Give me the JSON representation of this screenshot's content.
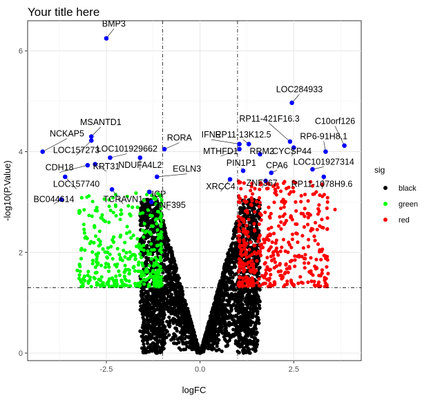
{
  "chart_data": {
    "type": "scatter",
    "title": "Your title here",
    "xlabel": "logFC",
    "ylabel": "-log10(P.Value)",
    "xlim": [
      -4.6,
      4.3
    ],
    "ylim": [
      -0.15,
      6.6
    ],
    "x_ticks": [
      -2.5,
      0.0,
      2.5
    ],
    "x_tick_labels": [
      "-2.5",
      "0.0",
      "2.5"
    ],
    "y_ticks": [
      0,
      2,
      4,
      6
    ],
    "y_tick_labels": [
      "0",
      "2",
      "4",
      "6"
    ],
    "grid": true,
    "vlines": [
      -1,
      1
    ],
    "hline": 1.3,
    "legend": {
      "title": "sig",
      "position": "right",
      "items": [
        {
          "label": "black",
          "color": "#000000"
        },
        {
          "label": "green",
          "color": "#00ff00"
        },
        {
          "label": "red",
          "color": "#ff0000"
        }
      ]
    },
    "colors": {
      "black": "#000000",
      "green": "#00ff00",
      "red": "#ff0000",
      "labeled": "#0000ff"
    },
    "labeled_points": [
      {
        "gene": "BMP3",
        "x": -2.5,
        "y": 6.25,
        "lx": -2.3,
        "ly": 6.48
      },
      {
        "gene": "LOC284933",
        "x": 2.45,
        "y": 4.97,
        "lx": 2.65,
        "ly": 5.18
      },
      {
        "gene": "MSANTD1",
        "x": -2.9,
        "y": 4.3,
        "lx": -2.65,
        "ly": 4.53
      },
      {
        "gene": "NCKAP5",
        "x": -4.2,
        "y": 4.0,
        "lx": -3.55,
        "ly": 4.3
      },
      {
        "gene": "LOC157273",
        "x": -2.9,
        "y": 4.22,
        "lx": -3.3,
        "ly": 3.97
      },
      {
        "gene": "LOC101929662",
        "x": -2.4,
        "y": 3.88,
        "lx": -1.95,
        "ly": 4.0
      },
      {
        "gene": "RORA",
        "x": -0.95,
        "y": 4.05,
        "lx": -0.55,
        "ly": 4.22
      },
      {
        "gene": "NDUFA4L2",
        "x": -1.6,
        "y": 3.88,
        "lx": -1.6,
        "ly": 3.68
      },
      {
        "gene": "CDH18",
        "x": -3.0,
        "y": 3.73,
        "lx": -3.75,
        "ly": 3.63
      },
      {
        "gene": "KRT31",
        "x": -2.8,
        "y": 3.75,
        "lx": -2.5,
        "ly": 3.65
      },
      {
        "gene": "EGLN3",
        "x": -1.15,
        "y": 3.5,
        "lx": -0.35,
        "ly": 3.6
      },
      {
        "gene": "LOC157740",
        "x": -3.6,
        "y": 3.5,
        "lx": -3.3,
        "ly": 3.3
      },
      {
        "gene": "BC044614",
        "x": -3.7,
        "y": 3.05,
        "lx": -3.9,
        "ly": 3.0
      },
      {
        "gene": "TCRAVN1",
        "x": -2.35,
        "y": 3.25,
        "lx": -2.05,
        "ly": 3.0
      },
      {
        "gene": "ICP",
        "x": -1.35,
        "y": 3.2,
        "lx": -1.1,
        "ly": 3.1
      },
      {
        "gene": "ZNF395",
        "x": -1.3,
        "y": 3.0,
        "lx": -0.8,
        "ly": 2.88
      },
      {
        "gene": "IFNE",
        "x": 1.05,
        "y": 4.15,
        "lx": 0.3,
        "ly": 4.28
      },
      {
        "gene": "RP11-13K12.5",
        "x": 1.3,
        "y": 4.15,
        "lx": 1.15,
        "ly": 4.28
      },
      {
        "gene": "RP11-421F16.3",
        "x": 2.4,
        "y": 4.2,
        "lx": 1.85,
        "ly": 4.6
      },
      {
        "gene": "C10orf126",
        "x": 3.85,
        "y": 4.12,
        "lx": 3.6,
        "ly": 4.55
      },
      {
        "gene": "RP6-91H8.1",
        "x": 3.35,
        "y": 4.0,
        "lx": 3.3,
        "ly": 4.25
      },
      {
        "gene": "MTHFD1",
        "x": 1.05,
        "y": 4.05,
        "lx": 0.55,
        "ly": 3.95
      },
      {
        "gene": "RRM2",
        "x": 1.6,
        "y": 3.95,
        "lx": 1.65,
        "ly": 3.95
      },
      {
        "gene": "CYCSP44",
        "x": 2.5,
        "y": 4.08,
        "lx": 2.45,
        "ly": 3.95
      },
      {
        "gene": "LOC101927314",
        "x": 3.0,
        "y": 3.65,
        "lx": 3.3,
        "ly": 3.74
      },
      {
        "gene": "PIN1P1",
        "x": 1.15,
        "y": 3.62,
        "lx": 1.1,
        "ly": 3.72
      },
      {
        "gene": "CPA6",
        "x": 1.9,
        "y": 3.58,
        "lx": 2.05,
        "ly": 3.67
      },
      {
        "gene": "ZNF367",
        "x": 1.75,
        "y": 3.42,
        "lx": 1.65,
        "ly": 3.32
      },
      {
        "gene": "RP11-1078H9.6",
        "x": 3.3,
        "y": 3.5,
        "lx": 3.25,
        "ly": 3.3
      },
      {
        "gene": "XRCC4",
        "x": 0.8,
        "y": 3.45,
        "lx": 0.55,
        "ly": 3.25
      }
    ]
  }
}
